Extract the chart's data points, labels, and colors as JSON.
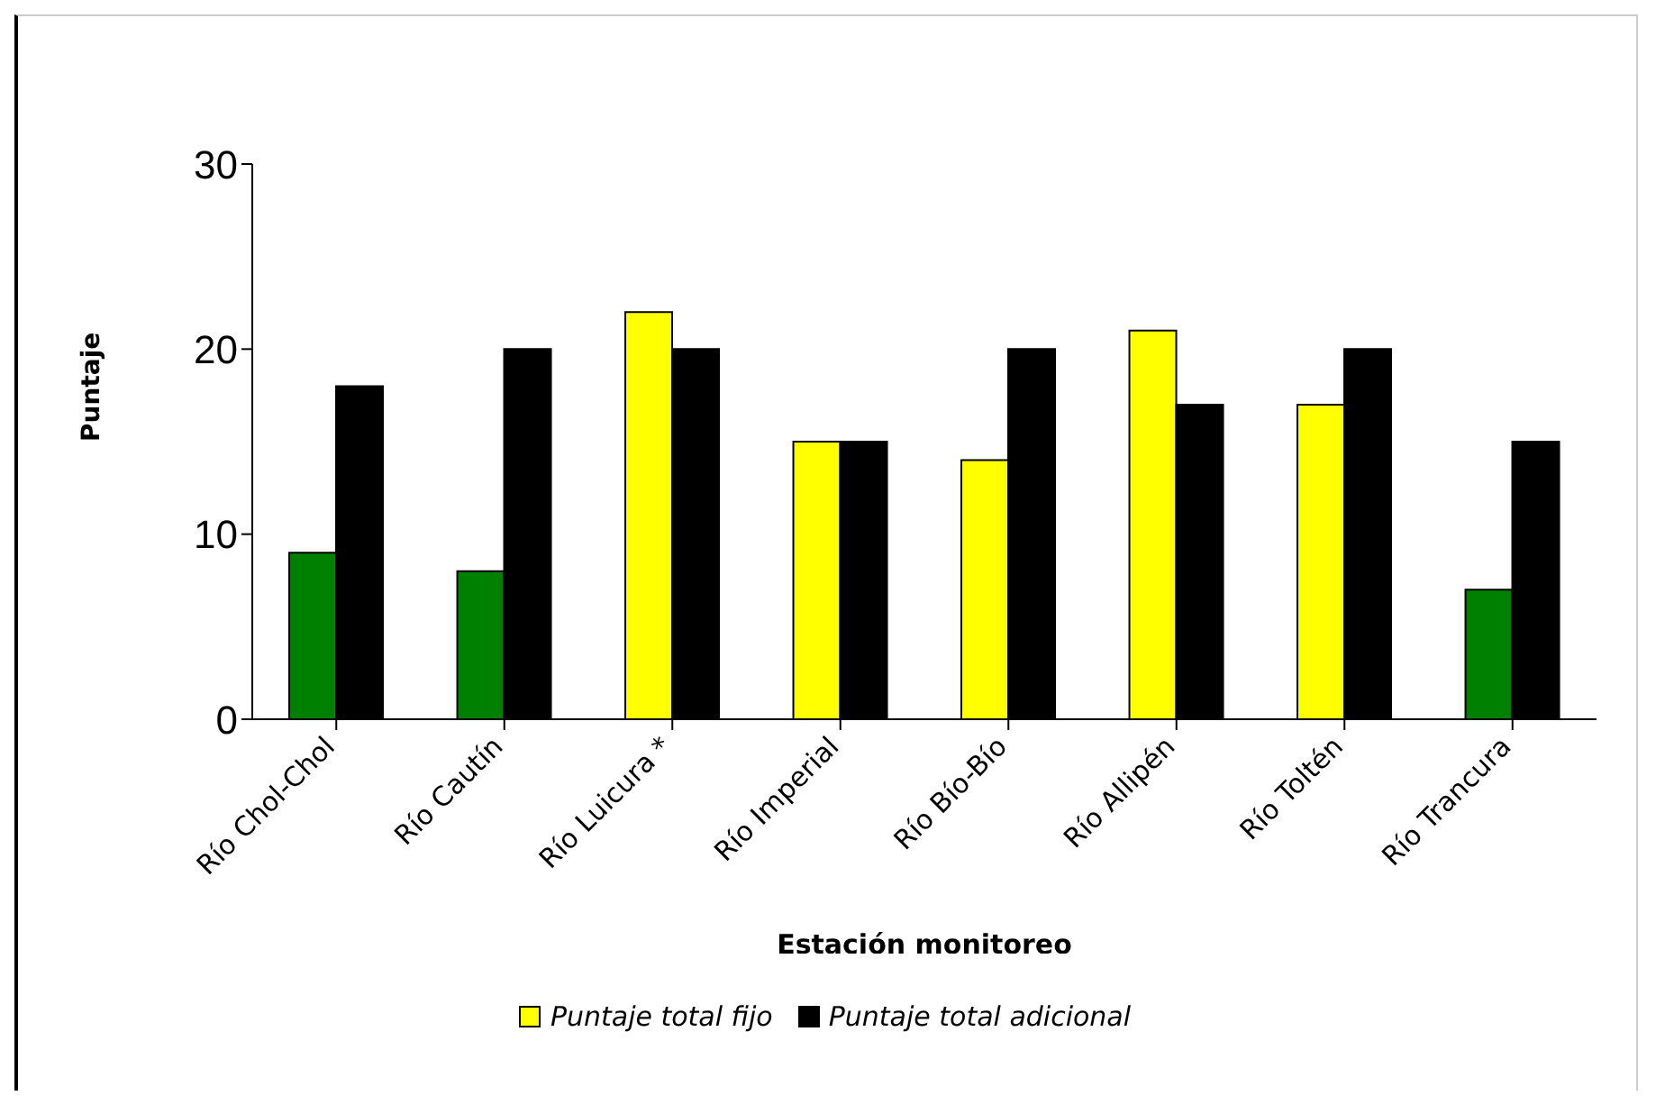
{
  "chart_data": {
    "type": "bar",
    "xlabel": "Estación monitoreo",
    "ylabel": "Puntaje",
    "categories": [
      "Río Chol-Chol",
      "Río Cautín",
      "Río Luicura *",
      "Río Imperial",
      "Río Bío-Bío",
      "Río Allipén",
      "Río Toltén",
      "Río Trancura"
    ],
    "series": [
      {
        "name": "Puntaje total fijo",
        "color": "#ffff00",
        "colors": [
          "#008000",
          "#008000",
          "#ffff00",
          "#ffff00",
          "#ffff00",
          "#ffff00",
          "#ffff00",
          "#008000"
        ],
        "values": [
          9,
          8,
          22,
          15,
          14,
          21,
          17,
          7
        ]
      },
      {
        "name": "Puntaje total adicional",
        "color": "#000000",
        "values": [
          18,
          20,
          20,
          15,
          20,
          17,
          20,
          15
        ]
      }
    ],
    "ylim": [
      0,
      30
    ],
    "yticks": [
      0,
      10,
      20,
      30
    ],
    "grid": false,
    "legend": "bottom"
  }
}
